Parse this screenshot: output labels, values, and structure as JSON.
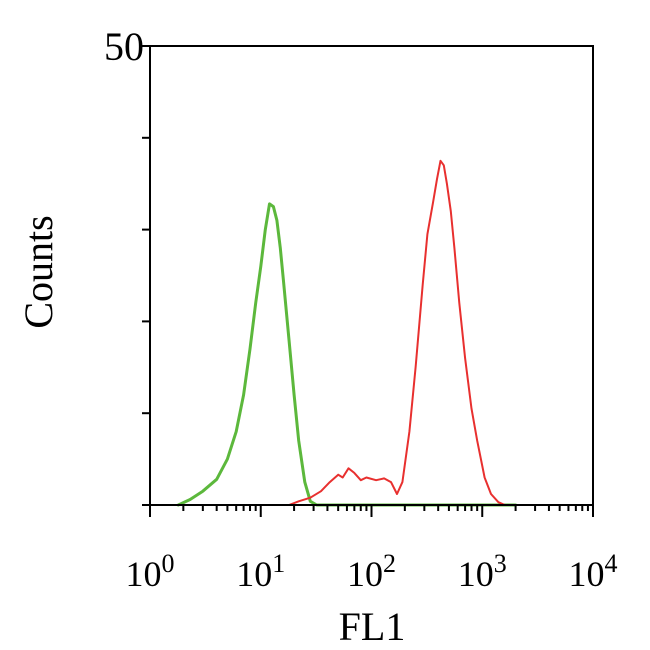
{
  "chart_data": {
    "type": "line",
    "title": "",
    "xlabel": "FL1",
    "ylabel": "Counts",
    "x_scale": "log10",
    "xlim": [
      1,
      10000
    ],
    "ylim": [
      0,
      50
    ],
    "y_tick_labels": [
      {
        "value": 50,
        "label": "50"
      }
    ],
    "x_tick_labels": [
      {
        "value": 1,
        "base": "10",
        "exp": "0"
      },
      {
        "value": 10,
        "base": "10",
        "exp": "1"
      },
      {
        "value": 100,
        "base": "10",
        "exp": "2"
      },
      {
        "value": 1000,
        "base": "10",
        "exp": "3"
      },
      {
        "value": 10000,
        "base": "10",
        "exp": "4"
      }
    ],
    "grid": false,
    "legend": "none",
    "series": [
      {
        "color": "#5cb83c",
        "stroke_width": 3,
        "points": [
          [
            1.8,
            0
          ],
          [
            2.3,
            0.6
          ],
          [
            3.0,
            1.5
          ],
          [
            4.0,
            2.8
          ],
          [
            5.0,
            5.0
          ],
          [
            6.0,
            8.0
          ],
          [
            7.0,
            12.0
          ],
          [
            8.0,
            17.0
          ],
          [
            9.0,
            22.0
          ],
          [
            10.0,
            26.0
          ],
          [
            11.0,
            30.0
          ],
          [
            12.0,
            32.8
          ],
          [
            13.0,
            32.5
          ],
          [
            14.0,
            31.0
          ],
          [
            15.0,
            28.0
          ],
          [
            16.0,
            24.5
          ],
          [
            18.0,
            18.0
          ],
          [
            20.0,
            12.0
          ],
          [
            22.0,
            7.0
          ],
          [
            25.0,
            2.5
          ],
          [
            28.0,
            0.4
          ],
          [
            32.0,
            0
          ],
          [
            180.0,
            0
          ],
          [
            2000.0,
            0
          ]
        ]
      },
      {
        "color": "#e8302f",
        "stroke_width": 2,
        "points": [
          [
            18.0,
            0
          ],
          [
            22.0,
            0.4
          ],
          [
            28.0,
            0.8
          ],
          [
            35.0,
            1.5
          ],
          [
            42.0,
            2.5
          ],
          [
            50.0,
            3.3
          ],
          [
            55.0,
            3.0
          ],
          [
            62.0,
            4.0
          ],
          [
            70.0,
            3.5
          ],
          [
            80.0,
            2.7
          ],
          [
            90.0,
            3.0
          ],
          [
            110.0,
            2.7
          ],
          [
            130.0,
            2.9
          ],
          [
            150.0,
            2.5
          ],
          [
            170.0,
            1.2
          ],
          [
            190.0,
            2.5
          ],
          [
            220.0,
            8.0
          ],
          [
            250.0,
            15.0
          ],
          [
            290.0,
            24.0
          ],
          [
            320.0,
            29.5
          ],
          [
            360.0,
            33.0
          ],
          [
            390.0,
            35.5
          ],
          [
            420.0,
            37.5
          ],
          [
            450.0,
            37.0
          ],
          [
            480.0,
            35.0
          ],
          [
            520.0,
            32.0
          ],
          [
            560.0,
            28.0
          ],
          [
            620.0,
            22.0
          ],
          [
            700.0,
            16.0
          ],
          [
            800.0,
            10.5
          ],
          [
            900.0,
            7.0
          ],
          [
            1050.0,
            3.0
          ],
          [
            1200.0,
            1.2
          ],
          [
            1400.0,
            0.3
          ],
          [
            1600.0,
            0
          ],
          [
            10000.0,
            0
          ]
        ]
      }
    ]
  }
}
